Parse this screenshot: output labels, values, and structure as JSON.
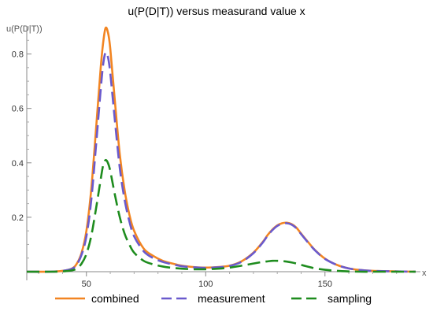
{
  "chart_data": {
    "type": "line",
    "title": "u(P(D|T)) versus measurand value x",
    "xlabel": "x",
    "ylabel": "u(P(D|T))",
    "xlim": [
      25,
      190
    ],
    "ylim": [
      -0.02,
      0.95
    ],
    "x_ticks": [
      50,
      100,
      150
    ],
    "x_minor_ticks": [
      30,
      40,
      60,
      70,
      80,
      90,
      110,
      120,
      130,
      140,
      160,
      170,
      180
    ],
    "y_ticks": [
      0.2,
      0.4,
      0.6,
      0.8
    ],
    "y_tick_labels": [
      "0.2",
      "0.4",
      "0.6",
      "0.8"
    ],
    "y_minor_ticks": [
      0.05,
      0.1,
      0.15,
      0.25,
      0.3,
      0.35,
      0.45,
      0.5,
      0.55,
      0.65,
      0.7,
      0.75,
      0.85,
      0.9
    ],
    "grid": false,
    "legend_position": "bottom",
    "series": [
      {
        "name": "combined",
        "color": "#f28522",
        "dash": "solid",
        "x": [
          25,
          35,
          40,
          44,
          46,
          48,
          50,
          52,
          54,
          56,
          57,
          58,
          59,
          60,
          62,
          64,
          66,
          68,
          70,
          74,
          78,
          82,
          86,
          90,
          95,
          100,
          105,
          110,
          115,
          120,
          124,
          126,
          128,
          130,
          132,
          134,
          136,
          138,
          140,
          143,
          146,
          150,
          155,
          160,
          165,
          170,
          180,
          188
        ],
        "y": [
          0.0,
          0.0,
          0.003,
          0.012,
          0.03,
          0.07,
          0.15,
          0.3,
          0.52,
          0.75,
          0.84,
          0.895,
          0.88,
          0.82,
          0.62,
          0.43,
          0.3,
          0.21,
          0.15,
          0.085,
          0.058,
          0.04,
          0.03,
          0.022,
          0.017,
          0.015,
          0.017,
          0.022,
          0.038,
          0.07,
          0.11,
          0.135,
          0.155,
          0.17,
          0.178,
          0.18,
          0.175,
          0.162,
          0.14,
          0.108,
          0.078,
          0.048,
          0.025,
          0.012,
          0.006,
          0.003,
          0.001,
          0.0
        ]
      },
      {
        "name": "measurement",
        "color": "#6a5acd",
        "dash": "long-dash",
        "x": [
          25,
          35,
          40,
          44,
          46,
          48,
          50,
          52,
          54,
          56,
          57,
          58,
          59,
          60,
          62,
          64,
          66,
          68,
          70,
          74,
          78,
          82,
          86,
          90,
          95,
          100,
          105,
          110,
          115,
          120,
          124,
          126,
          128,
          130,
          132,
          134,
          136,
          138,
          140,
          143,
          146,
          150,
          155,
          160,
          165,
          170,
          180,
          188
        ],
        "y": [
          0.0,
          0.0,
          0.003,
          0.011,
          0.027,
          0.063,
          0.13,
          0.26,
          0.46,
          0.67,
          0.76,
          0.805,
          0.79,
          0.73,
          0.55,
          0.38,
          0.265,
          0.185,
          0.13,
          0.075,
          0.05,
          0.036,
          0.027,
          0.02,
          0.016,
          0.014,
          0.016,
          0.021,
          0.036,
          0.068,
          0.108,
          0.133,
          0.153,
          0.168,
          0.176,
          0.178,
          0.173,
          0.16,
          0.138,
          0.106,
          0.077,
          0.047,
          0.025,
          0.012,
          0.006,
          0.003,
          0.001,
          0.0
        ]
      },
      {
        "name": "sampling",
        "color": "#1e8c1e",
        "dash": "long-dash",
        "x": [
          25,
          35,
          40,
          44,
          46,
          48,
          50,
          52,
          54,
          56,
          57,
          58,
          59,
          60,
          62,
          64,
          66,
          68,
          70,
          74,
          78,
          82,
          86,
          90,
          95,
          100,
          105,
          110,
          115,
          120,
          124,
          126,
          128,
          130,
          132,
          134,
          136,
          138,
          140,
          143,
          146,
          150,
          155,
          160,
          165,
          170,
          180,
          188
        ],
        "y": [
          0.0,
          0.0,
          0.001,
          0.005,
          0.012,
          0.03,
          0.065,
          0.13,
          0.23,
          0.34,
          0.39,
          0.41,
          0.4,
          0.37,
          0.28,
          0.2,
          0.14,
          0.1,
          0.07,
          0.04,
          0.027,
          0.019,
          0.014,
          0.011,
          0.009,
          0.009,
          0.011,
          0.015,
          0.022,
          0.03,
          0.036,
          0.038,
          0.04,
          0.04,
          0.039,
          0.037,
          0.034,
          0.03,
          0.025,
          0.018,
          0.012,
          0.007,
          0.003,
          0.001,
          0.0,
          0.0,
          0.0,
          0.0
        ]
      }
    ]
  }
}
